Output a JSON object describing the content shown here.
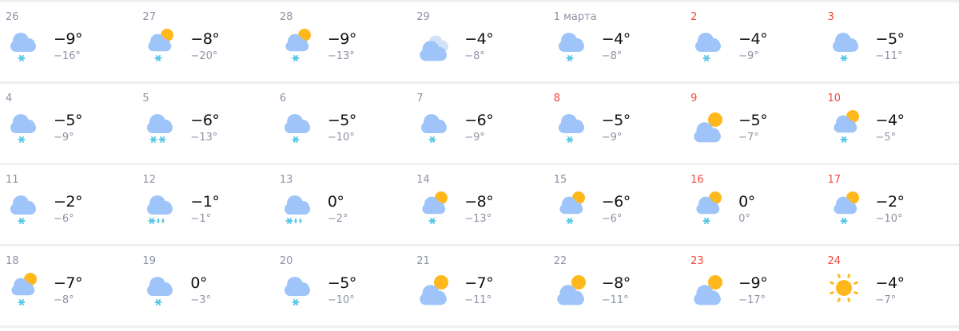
{
  "colors": {
    "weekend": "#f4473c",
    "muted": "#8d93a5",
    "cloud": "#9ec4fa",
    "sun": "#ffb81c",
    "snow": "#5bc8e8"
  },
  "weeks": [
    [
      {
        "day": "26",
        "weekend": false,
        "icon": "cloud-snow",
        "day_temp": "−9°",
        "night_temp": "−16°"
      },
      {
        "day": "27",
        "weekend": false,
        "icon": "partly-cloudy-snow",
        "day_temp": "−8°",
        "night_temp": "−20°"
      },
      {
        "day": "28",
        "weekend": false,
        "icon": "partly-cloudy-snow",
        "day_temp": "−9°",
        "night_temp": "−13°"
      },
      {
        "day": "29",
        "weekend": false,
        "icon": "overcast",
        "day_temp": "−4°",
        "night_temp": "−8°"
      },
      {
        "day": "1 марта",
        "weekend": false,
        "icon": "cloud-snow",
        "day_temp": "−4°",
        "night_temp": "−8°"
      },
      {
        "day": "2",
        "weekend": true,
        "icon": "cloud-snow",
        "day_temp": "−4°",
        "night_temp": "−9°"
      },
      {
        "day": "3",
        "weekend": true,
        "icon": "cloud-snow",
        "day_temp": "−5°",
        "night_temp": "−11°"
      }
    ],
    [
      {
        "day": "4",
        "weekend": false,
        "icon": "cloud-snow",
        "day_temp": "−5°",
        "night_temp": "−9°"
      },
      {
        "day": "5",
        "weekend": false,
        "icon": "cloud-heavy-snow",
        "day_temp": "−6°",
        "night_temp": "−13°"
      },
      {
        "day": "6",
        "weekend": false,
        "icon": "cloud-snow",
        "day_temp": "−5°",
        "night_temp": "−10°"
      },
      {
        "day": "7",
        "weekend": false,
        "icon": "cloud-snow",
        "day_temp": "−6°",
        "night_temp": "−9°"
      },
      {
        "day": "8",
        "weekend": true,
        "icon": "cloud-snow",
        "day_temp": "−5°",
        "night_temp": "−9°"
      },
      {
        "day": "9",
        "weekend": true,
        "icon": "partly-cloudy",
        "day_temp": "−5°",
        "night_temp": "−7°"
      },
      {
        "day": "10",
        "weekend": true,
        "icon": "partly-cloudy-snow",
        "day_temp": "−4°",
        "night_temp": "−5°"
      }
    ],
    [
      {
        "day": "11",
        "weekend": false,
        "icon": "cloud-snow",
        "day_temp": "−2°",
        "night_temp": "−6°"
      },
      {
        "day": "12",
        "weekend": false,
        "icon": "cloud-sleet",
        "day_temp": "−1°",
        "night_temp": "−1°"
      },
      {
        "day": "13",
        "weekend": false,
        "icon": "cloud-sleet",
        "day_temp": "0°",
        "night_temp": "−2°"
      },
      {
        "day": "14",
        "weekend": false,
        "icon": "partly-cloudy-snow",
        "day_temp": "−8°",
        "night_temp": "−13°"
      },
      {
        "day": "15",
        "weekend": false,
        "icon": "partly-cloudy-snow",
        "day_temp": "−6°",
        "night_temp": "−6°"
      },
      {
        "day": "16",
        "weekend": true,
        "icon": "partly-cloudy-snow",
        "day_temp": "0°",
        "night_temp": "0°"
      },
      {
        "day": "17",
        "weekend": true,
        "icon": "partly-cloudy-snow",
        "day_temp": "−2°",
        "night_temp": "−10°"
      }
    ],
    [
      {
        "day": "18",
        "weekend": false,
        "icon": "partly-cloudy-snow",
        "day_temp": "−7°",
        "night_temp": "−8°"
      },
      {
        "day": "19",
        "weekend": false,
        "icon": "cloud-snow",
        "day_temp": "0°",
        "night_temp": "−3°"
      },
      {
        "day": "20",
        "weekend": false,
        "icon": "cloud-snow",
        "day_temp": "−5°",
        "night_temp": "−10°"
      },
      {
        "day": "21",
        "weekend": false,
        "icon": "partly-cloudy",
        "day_temp": "−7°",
        "night_temp": "−11°"
      },
      {
        "day": "22",
        "weekend": false,
        "icon": "partly-cloudy",
        "day_temp": "−8°",
        "night_temp": "−11°"
      },
      {
        "day": "23",
        "weekend": true,
        "icon": "partly-cloudy",
        "day_temp": "−9°",
        "night_temp": "−17°"
      },
      {
        "day": "24",
        "weekend": true,
        "icon": "sunny",
        "day_temp": "−4°",
        "night_temp": "−7°"
      }
    ]
  ]
}
